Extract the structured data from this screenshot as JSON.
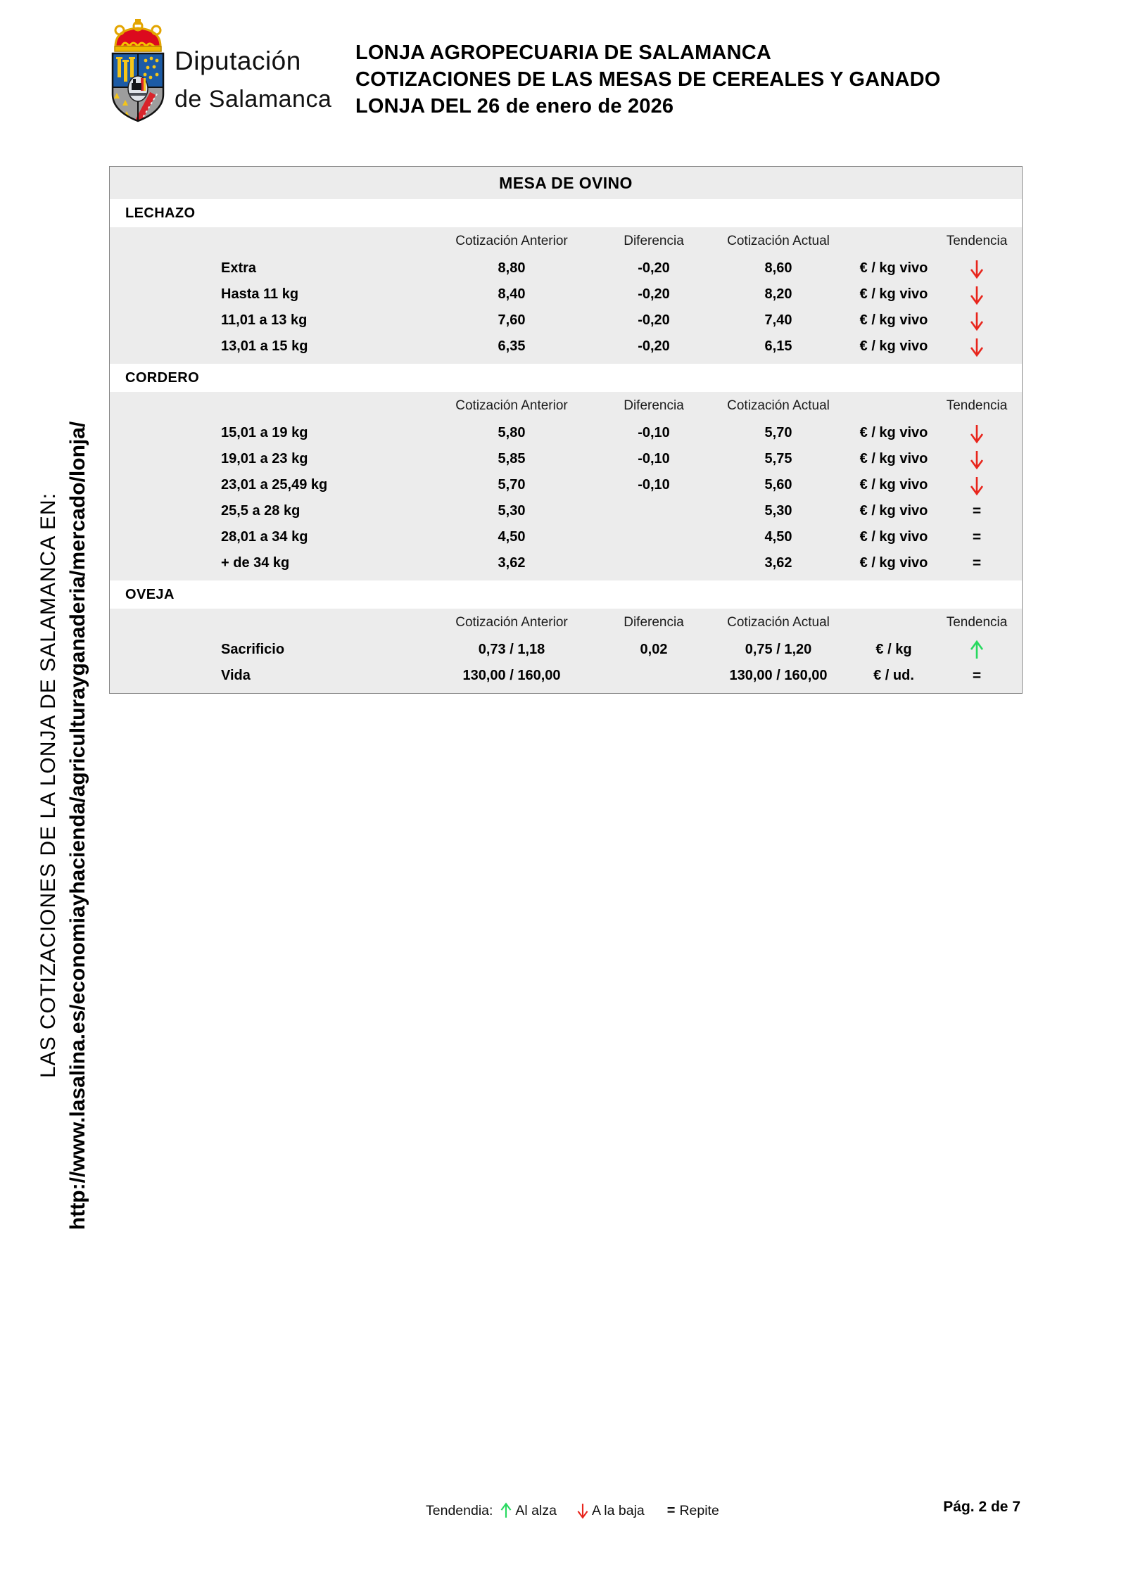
{
  "header": {
    "logo": {
      "org_line1": "Diputación",
      "org_line2": "de Salamanca"
    },
    "title_lines": [
      "LONJA AGROPECUARIA DE SALAMANCA",
      "COTIZACIONES DE LAS MESAS DE CEREALES Y GANADO",
      "LONJA DEL 26 de enero de 2026"
    ]
  },
  "sidebar": {
    "line1": "LAS COTIZACIONES DE LA LONJA DE SALAMANCA EN:",
    "line2": "http://www.lasalina.es/economiayhacienda/agriculturayganaderia/mercado/lonja/"
  },
  "table": {
    "title": "MESA DE OVINO",
    "columns": {
      "anterior": "Cotización Anterior",
      "diferencia": "Diferencia",
      "actual": "Cotización Actual",
      "tendencia": "Tendencia"
    },
    "sections": [
      {
        "name": "LECHAZO",
        "rows": [
          {
            "label": "Extra",
            "anterior": "8,80",
            "diferencia": "-0,20",
            "actual": "8,60",
            "unit": "€ / kg vivo",
            "trend": "down"
          },
          {
            "label": "Hasta 11 kg",
            "anterior": "8,40",
            "diferencia": "-0,20",
            "actual": "8,20",
            "unit": "€ / kg vivo",
            "trend": "down"
          },
          {
            "label": "11,01 a 13 kg",
            "anterior": "7,60",
            "diferencia": "-0,20",
            "actual": "7,40",
            "unit": "€ / kg vivo",
            "trend": "down"
          },
          {
            "label": "13,01 a 15 kg",
            "anterior": "6,35",
            "diferencia": "-0,20",
            "actual": "6,15",
            "unit": "€ / kg vivo",
            "trend": "down"
          }
        ]
      },
      {
        "name": "CORDERO",
        "rows": [
          {
            "label": "15,01 a 19 kg",
            "anterior": "5,80",
            "diferencia": "-0,10",
            "actual": "5,70",
            "unit": "€ / kg vivo",
            "trend": "down"
          },
          {
            "label": "19,01 a 23 kg",
            "anterior": "5,85",
            "diferencia": "-0,10",
            "actual": "5,75",
            "unit": "€ / kg vivo",
            "trend": "down"
          },
          {
            "label": "23,01 a 25,49 kg",
            "anterior": "5,70",
            "diferencia": "-0,10",
            "actual": "5,60",
            "unit": "€ / kg vivo",
            "trend": "down"
          },
          {
            "label": "25,5 a 28 kg",
            "anterior": "5,30",
            "diferencia": "",
            "actual": "5,30",
            "unit": "€ / kg vivo",
            "trend": "equal"
          },
          {
            "label": "28,01 a 34 kg",
            "anterior": "4,50",
            "diferencia": "",
            "actual": "4,50",
            "unit": "€ / kg vivo",
            "trend": "equal"
          },
          {
            "label": "+ de 34 kg",
            "anterior": "3,62",
            "diferencia": "",
            "actual": "3,62",
            "unit": "€ / kg vivo",
            "trend": "equal"
          }
        ]
      },
      {
        "name": "OVEJA",
        "rows": [
          {
            "label": "Sacrificio",
            "anterior": "0,73 / 1,18",
            "diferencia": "0,02",
            "actual": "0,75 / 1,20",
            "unit": "€ / kg",
            "trend": "up"
          },
          {
            "label": "Vida",
            "anterior": "130,00 / 160,00",
            "diferencia": "",
            "actual": "130,00 / 160,00",
            "unit": "€ / ud.",
            "trend": "equal"
          }
        ]
      }
    ]
  },
  "footer": {
    "legend_label": "Tendendia:",
    "legend_up": "Al alza",
    "legend_down": "A la baja",
    "legend_equal_symbol": "=",
    "legend_equal": "Repite",
    "page": "Pág. 2 de 7"
  },
  "colors": {
    "up": "#27d95f",
    "down": "#e8251c",
    "table_bg": "#ececec"
  }
}
